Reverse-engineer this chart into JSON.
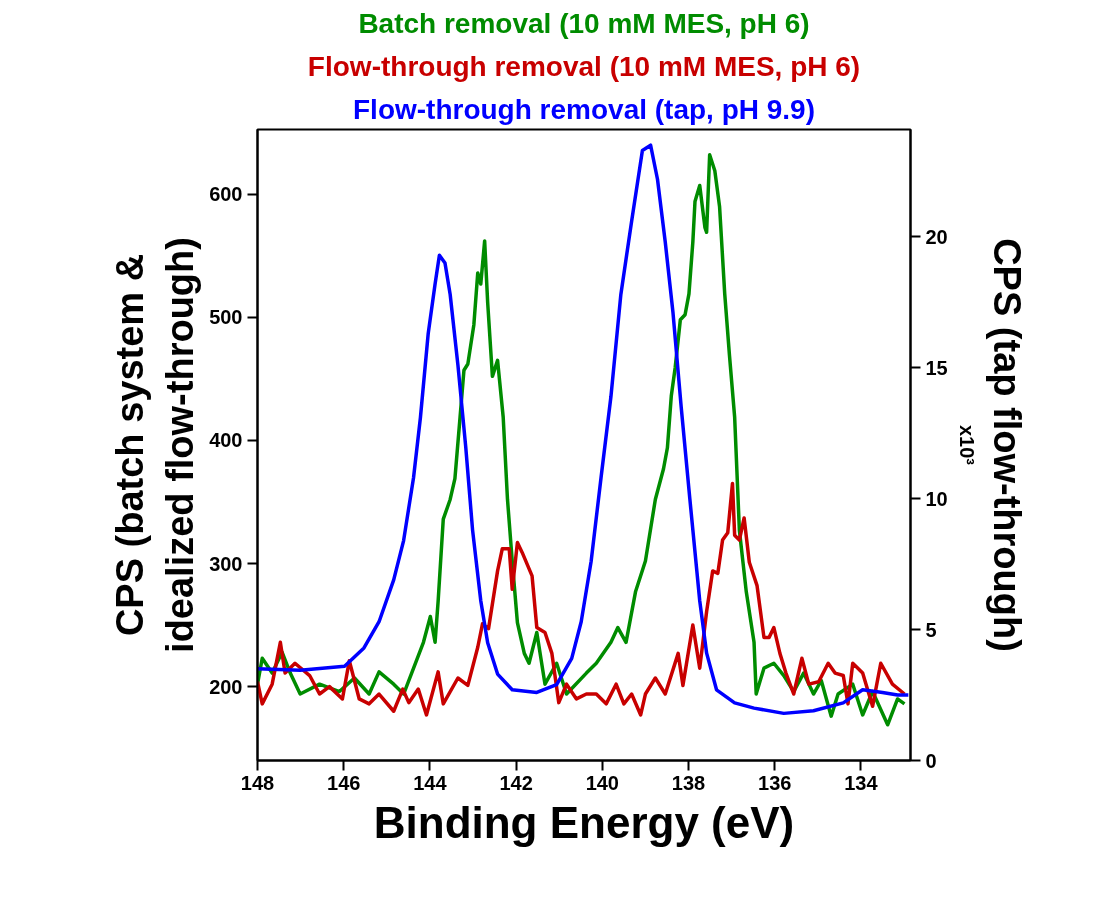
{
  "chart_data": {
    "type": "line",
    "xlabel": "Binding Energy (eV)",
    "ylabel": "CPS (batch system &\nidealized flow-through)",
    "y2label": "CPS (tap flow-through)",
    "annotations": [
      "x10³"
    ],
    "xlim": [
      148,
      132.85
    ],
    "xticks": [
      148,
      146,
      144,
      142,
      140,
      138,
      136,
      134
    ],
    "ylim": [
      140,
      652.5
    ],
    "yticks": [
      200,
      300,
      400,
      500,
      600
    ],
    "y2lim": [
      0,
      24.1
    ],
    "y2ticks": [
      0,
      5,
      10,
      15,
      20
    ],
    "grid": false,
    "legend": "top",
    "marker": "none",
    "line_style": "solid",
    "series": [
      {
        "name": "Batch removal (10 mM MES, pH 6)",
        "color": "#008c00",
        "x": [
          148.0,
          147.89,
          147.66,
          147.43,
          147.24,
          147.01,
          146.56,
          146.1,
          145.75,
          145.41,
          145.18,
          144.84,
          144.61,
          144.15,
          143.99,
          143.88,
          143.81,
          143.69,
          143.53,
          143.42,
          143.3,
          143.21,
          143.12,
          142.98,
          142.89,
          142.82,
          142.73,
          142.66,
          142.55,
          142.43,
          142.3,
          142.2,
          142.09,
          141.97,
          141.81,
          141.7,
          141.52,
          141.33,
          141.06,
          140.83,
          140.37,
          140.14,
          139.8,
          139.64,
          139.45,
          139.23,
          139.0,
          138.77,
          138.58,
          138.49,
          138.4,
          138.31,
          138.19,
          138.08,
          137.99,
          137.9,
          137.85,
          137.74,
          137.62,
          137.58,
          137.51,
          137.39,
          137.28,
          137.16,
          137.05,
          136.93,
          136.82,
          136.66,
          136.48,
          136.43,
          136.25,
          136.02,
          135.79,
          135.56,
          135.33,
          135.1,
          134.92,
          134.69,
          134.53,
          134.19,
          133.96,
          133.73,
          133.38,
          133.15,
          132.99
        ],
        "values": [
          202,
          223,
          211,
          228,
          211,
          194,
          202,
          196,
          207,
          194,
          212,
          202,
          194,
          236,
          257,
          236,
          269,
          336,
          352,
          369,
          419,
          457,
          462,
          494,
          536,
          527,
          562,
          512,
          452,
          465,
          419,
          352,
          302,
          252,
          227,
          219,
          244,
          202,
          219,
          194,
          211,
          219,
          236,
          248,
          236,
          277,
          302,
          352,
          377,
          394,
          436,
          459,
          498,
          502,
          519,
          561,
          594,
          607,
          573,
          569,
          632,
          619,
          590,
          519,
          469,
          419,
          327,
          277,
          236,
          194,
          215,
          219,
          209,
          196,
          211,
          194,
          205,
          176,
          194,
          202,
          177,
          196,
          169,
          190,
          186
        ]
      },
      {
        "name": "Flow-through removal (10 mM MES, pH 6)",
        "color": "#c80000",
        "x": [
          148.0,
          147.89,
          147.66,
          147.47,
          147.36,
          147.13,
          146.79,
          146.56,
          146.33,
          146.03,
          145.87,
          145.64,
          145.41,
          145.18,
          144.84,
          144.63,
          144.49,
          144.27,
          144.08,
          143.81,
          143.69,
          143.35,
          143.12,
          142.89,
          142.78,
          142.64,
          142.43,
          142.32,
          142.16,
          142.09,
          141.97,
          141.86,
          141.63,
          141.52,
          141.33,
          141.17,
          141.01,
          140.83,
          140.6,
          140.37,
          140.14,
          139.91,
          139.68,
          139.5,
          139.32,
          139.11,
          139.0,
          138.77,
          138.54,
          138.24,
          138.13,
          137.9,
          137.74,
          137.58,
          137.44,
          137.32,
          137.21,
          137.09,
          136.98,
          136.93,
          136.82,
          136.71,
          136.59,
          136.41,
          136.25,
          136.13,
          136.02,
          135.88,
          135.74,
          135.56,
          135.37,
          135.21,
          134.98,
          134.76,
          134.6,
          134.41,
          134.3,
          134.19,
          133.96,
          133.73,
          133.54,
          133.27,
          132.99
        ],
        "values": [
          204,
          186,
          202,
          236,
          211,
          219,
          209,
          194,
          200,
          190,
          221,
          190,
          186,
          194,
          180,
          198,
          187,
          198,
          177,
          212,
          186,
          207,
          201,
          232,
          251,
          247,
          294,
          312,
          312,
          279,
          317,
          309,
          290,
          248,
          244,
          227,
          187,
          202,
          190,
          194,
          194,
          186,
          202,
          186,
          194,
          177,
          194,
          207,
          194,
          227,
          201,
          250,
          215,
          261,
          294,
          292,
          319,
          325,
          365,
          323,
          319,
          337,
          301,
          282,
          240,
          240,
          248,
          227,
          211,
          194,
          223,
          202,
          204,
          219,
          211,
          209,
          186,
          219,
          211,
          184,
          219,
          202,
          194
        ]
      },
      {
        "name": "Flow-through removal (tap, pH 9.9)",
        "color": "#0000ff",
        "axis": "y2",
        "x": [
          148.0,
          147.01,
          145.98,
          145.53,
          145.18,
          144.84,
          144.61,
          144.38,
          144.22,
          144.04,
          143.88,
          143.78,
          143.65,
          143.53,
          143.35,
          143.17,
          143.01,
          142.82,
          142.66,
          142.43,
          142.09,
          141.52,
          141.06,
          140.71,
          140.49,
          140.26,
          140.03,
          139.8,
          139.57,
          139.32,
          139.07,
          138.88,
          138.72,
          138.54,
          138.36,
          138.17,
          137.97,
          137.74,
          137.58,
          137.35,
          136.93,
          136.48,
          135.79,
          135.1,
          134.41,
          133.96,
          133.5,
          133.15,
          132.9
        ],
        "values": [
          3.5,
          3.45,
          3.6,
          4.3,
          5.3,
          6.9,
          8.4,
          10.8,
          13.1,
          16.3,
          18.2,
          19.3,
          19.0,
          17.8,
          15.1,
          12.0,
          8.8,
          6.1,
          4.5,
          3.3,
          2.7,
          2.6,
          2.9,
          3.9,
          5.3,
          7.6,
          10.8,
          13.9,
          17.8,
          20.6,
          23.3,
          23.5,
          22.2,
          19.8,
          17.1,
          13.5,
          10.0,
          6.1,
          4.1,
          2.7,
          2.2,
          2.0,
          1.8,
          1.9,
          2.2,
          2.7,
          2.6,
          2.5,
          2.5
        ]
      }
    ]
  }
}
